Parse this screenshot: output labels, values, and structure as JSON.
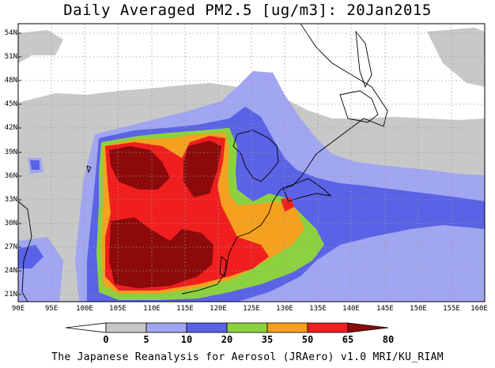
{
  "title": "Daily Averaged PM2.5 [ug/m3]: 20Jan2015",
  "footer": "The Japanese Reanalysis for Aerosol (JRAero) v1.0 MRI/KU_RIAM",
  "map": {
    "lon_range": [
      90,
      160
    ],
    "lat_range": [
      20,
      55
    ],
    "lat_labels": [
      "54N",
      "51N",
      "48N",
      "45N",
      "42N",
      "39N",
      "36N",
      "33N",
      "30N",
      "27N",
      "24N",
      "21N"
    ],
    "lon_labels": [
      "90E",
      "95E",
      "100E",
      "105E",
      "110E",
      "115E",
      "120E",
      "125E",
      "130E",
      "135E",
      "140E",
      "145E",
      "150E",
      "155E",
      "160E"
    ]
  },
  "colorbar": {
    "levels": [
      "0",
      "5",
      "10",
      "20",
      "35",
      "50",
      "65",
      "80"
    ],
    "colors": [
      "#ffffff",
      "#c8c8c8",
      "#a0a6f0",
      "#5a62e6",
      "#8cd240",
      "#f5a01e",
      "#f01e1e",
      "#8c0a0a"
    ]
  }
}
